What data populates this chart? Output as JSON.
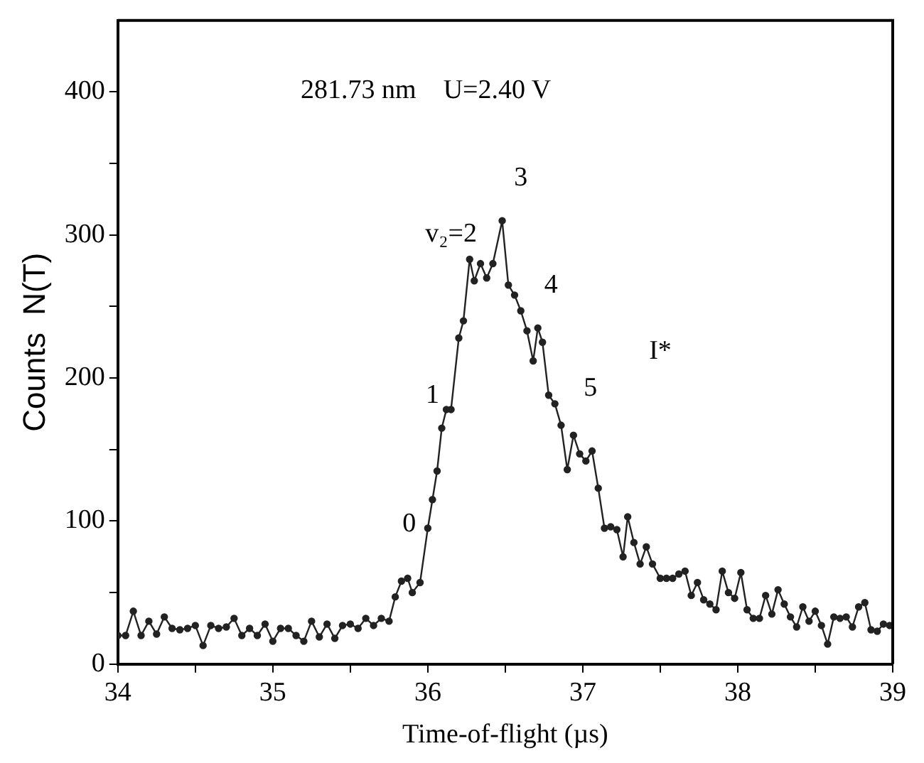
{
  "chart_data": {
    "type": "line",
    "xlabel": "Time-of-flight (µs)",
    "ylabel": "Counts  N(T)",
    "xlim": [
      34,
      39
    ],
    "xticks": [
      34,
      {
        "value": 34.5,
        "label": null
      },
      35,
      {
        "value": 35.5,
        "label": null
      },
      36,
      {
        "value": 36.5,
        "label": null
      },
      37,
      {
        "value": 37.5,
        "label": null
      },
      38,
      {
        "value": 38.5,
        "label": null
      },
      39
    ],
    "ylim": [
      0,
      450
    ],
    "yticks": [
      0,
      {
        "value": 50,
        "label": null
      },
      100,
      {
        "value": 150,
        "label": null
      },
      200,
      {
        "value": 250,
        "label": null
      },
      300,
      {
        "value": 350,
        "label": null
      },
      400
    ],
    "grid": false,
    "legend": false,
    "marker": "circle",
    "line_style": "solid",
    "annotations": [
      "281.73 nm    U=2.40 V",
      "0",
      "1",
      "v₂=2",
      "3",
      "4",
      "5",
      "I*"
    ],
    "series": [
      {
        "color": "#222222",
        "x": [
          34,
          34.05,
          34.1,
          34.15,
          34.2,
          34.25,
          34.3,
          34.35,
          34.4,
          34.45,
          34.5,
          34.55,
          34.6,
          34.65,
          34.7,
          34.75,
          34.8,
          34.85,
          34.9,
          34.95,
          35,
          35.05,
          35.1,
          35.15,
          35.2,
          35.25,
          35.3,
          35.35,
          35.4,
          35.45,
          35.5,
          35.55,
          35.6,
          35.65,
          35.7,
          35.75,
          35.79,
          35.83,
          35.87,
          35.9,
          35.95,
          36,
          36.03,
          36.06,
          36.09,
          36.12,
          36.15,
          36.2,
          36.23,
          36.27,
          36.3,
          36.34,
          36.38,
          36.42,
          36.48,
          36.52,
          36.56,
          36.6,
          36.64,
          36.68,
          36.71,
          36.74,
          36.78,
          36.82,
          36.86,
          36.9,
          36.94,
          36.98,
          37.02,
          37.06,
          37.1,
          37.14,
          37.18,
          37.22,
          37.26,
          37.29,
          37.33,
          37.37,
          37.41,
          37.45,
          37.5,
          37.54,
          37.58,
          37.62,
          37.66,
          37.7,
          37.74,
          37.78,
          37.82,
          37.86,
          37.9,
          37.94,
          37.98,
          38.02,
          38.06,
          38.1,
          38.14,
          38.18,
          38.22,
          38.26,
          38.3,
          38.34,
          38.38,
          38.42,
          38.46,
          38.5,
          38.54,
          38.58,
          38.62,
          38.66,
          38.7,
          38.74,
          38.78,
          38.82,
          38.86,
          38.9,
          38.94,
          38.98
        ],
        "values": [
          20,
          20,
          37,
          20,
          30,
          21,
          33,
          25,
          24,
          25,
          27,
          13,
          27,
          25,
          26,
          32,
          20,
          25,
          20,
          28,
          16,
          25,
          25,
          20,
          16,
          30,
          19,
          28,
          18,
          27,
          28,
          25,
          32,
          27,
          32,
          30,
          47,
          58,
          60,
          50,
          57,
          95,
          115,
          135,
          165,
          178,
          178,
          228,
          240,
          283,
          268,
          280,
          270,
          280,
          310,
          265,
          258,
          247,
          233,
          212,
          235,
          225,
          188,
          182,
          167,
          136,
          160,
          147,
          142,
          149,
          123,
          95,
          96,
          94,
          75,
          103,
          85,
          70,
          82,
          70,
          60,
          60,
          60,
          63,
          65,
          48,
          57,
          45,
          42,
          38,
          65,
          50,
          46,
          64,
          38,
          32,
          32,
          48,
          35,
          52,
          42,
          33,
          26,
          40,
          30,
          37,
          27,
          14,
          33,
          32,
          33,
          26,
          40,
          43,
          24,
          23,
          28,
          27
        ]
      }
    ]
  }
}
